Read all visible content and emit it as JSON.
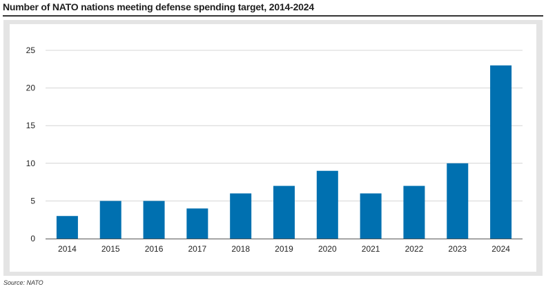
{
  "title": "Number of NATO nations meeting defense spending target, 2014-2024",
  "source": "Source: NATO",
  "colors": {
    "bar": "#0070b0",
    "grid": "#d4d4d4",
    "axis": "#555555",
    "panel": "#e4e4e4"
  },
  "chart_data": {
    "type": "bar",
    "title": "Number of NATO nations meeting defense spending target, 2014-2024",
    "xlabel": "",
    "ylabel": "",
    "categories": [
      "2014",
      "2015",
      "2016",
      "2017",
      "2018",
      "2019",
      "2020",
      "2021",
      "2022",
      "2023",
      "2024"
    ],
    "values": [
      3,
      5,
      5,
      4,
      6,
      7,
      9,
      6,
      7,
      10,
      23
    ],
    "ylim": [
      0,
      25
    ],
    "yticks": [
      0,
      5,
      10,
      15,
      20,
      25
    ],
    "grid": true,
    "legend": "none"
  }
}
